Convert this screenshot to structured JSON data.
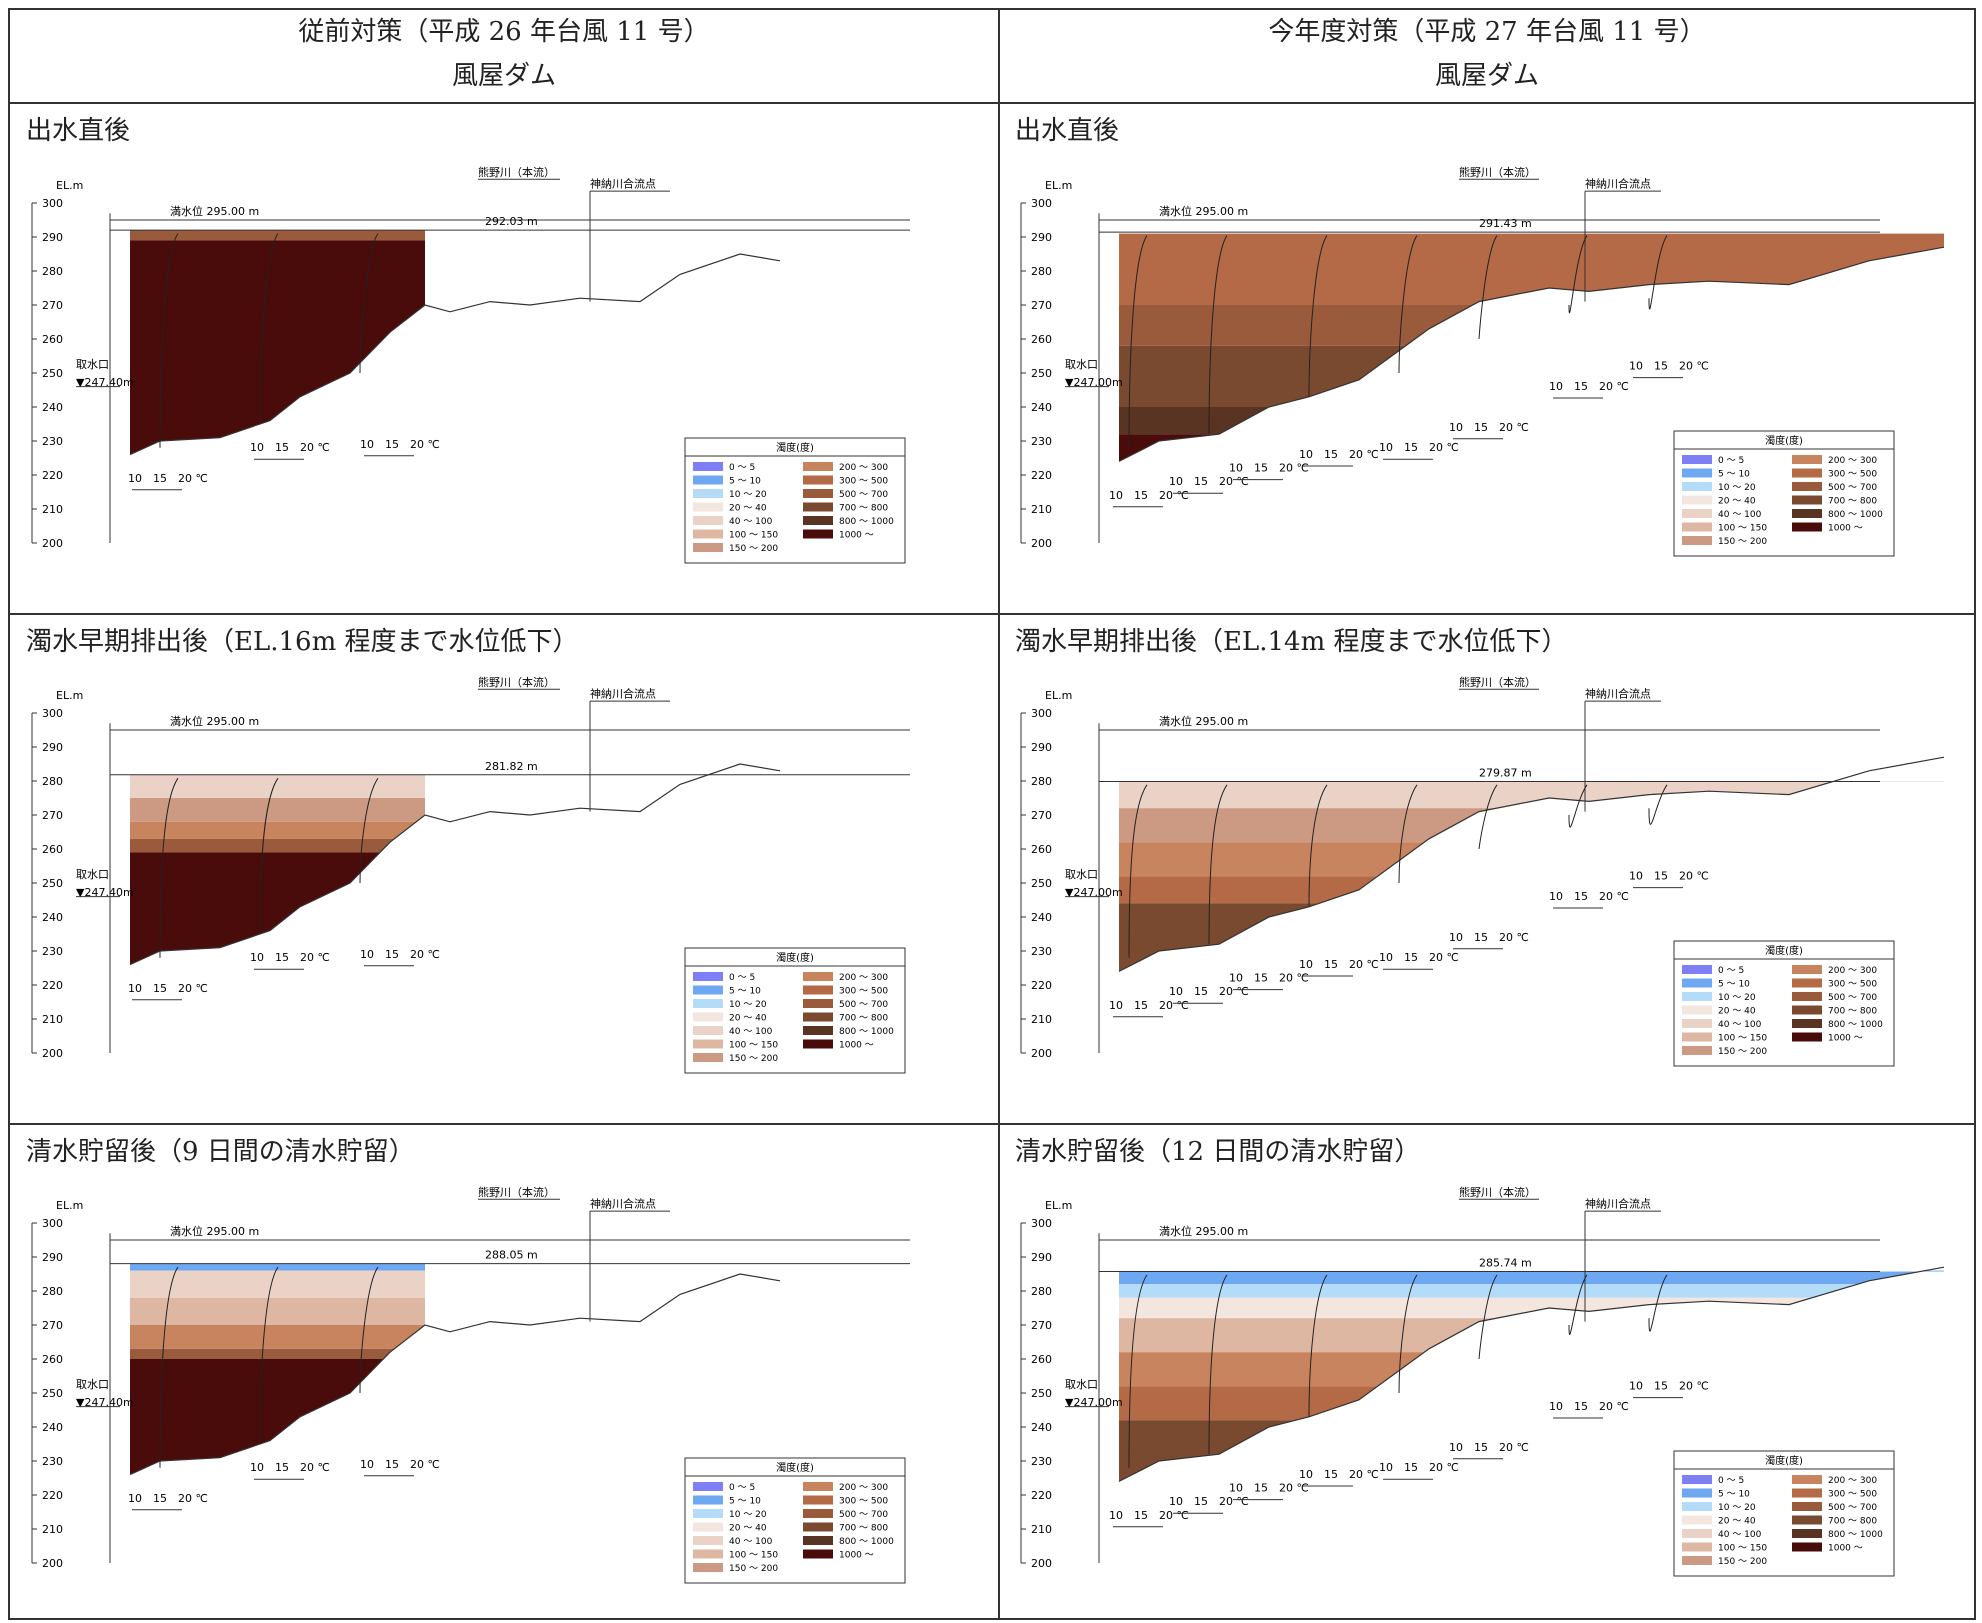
{
  "columns": [
    {
      "title": "従前対策（平成 26 年台風 11 号）",
      "subtitle": "風屋ダム"
    },
    {
      "title": "今年度対策（平成 27 年台風 11 号）",
      "subtitle": "風屋ダム"
    }
  ],
  "rows": [
    {
      "left_title": "出水直後",
      "right_title": "出水直後",
      "left_wl": "292.03 m",
      "right_wl": "291.43 m"
    },
    {
      "left_title": "濁水早期排出後（EL.16m 程度まで水位低下）",
      "right_title": "濁水早期排出後（EL.14m 程度まで水位低下）",
      "left_wl": "281.82 m",
      "right_wl": "279.87 m"
    },
    {
      "left_title": "清水貯留後（9 日間の清水貯留）",
      "right_title": "清水貯留後（12 日間の清水貯留）",
      "left_wl": "288.05 m",
      "right_wl": "285.74 m"
    }
  ],
  "chart_common": {
    "axis_unit": "EL.m",
    "y_ticks": [
      "300",
      "290",
      "280",
      "270",
      "260",
      "250",
      "240",
      "230",
      "220",
      "210",
      "200"
    ],
    "full_level": "満水位 295.00 m",
    "river": "熊野川（本流）",
    "confluence": "神納川合流点",
    "intake": "取水口",
    "intake_level": "▼247.40m",
    "intake_level_right": "▼247.00m",
    "temp_label": "10　15　20 ℃",
    "legend_title": "濁度(度)"
  },
  "legend": [
    {
      "label": "0 ～ 5",
      "color": "#7f7ff5"
    },
    {
      "label": "5 ～ 10",
      "color": "#6fa8f2"
    },
    {
      "label": "10 ～ 20",
      "color": "#b4dcf8"
    },
    {
      "label": "20 ～ 40",
      "color": "#f3e6de"
    },
    {
      "label": "40 ～ 100",
      "color": "#ead2c6"
    },
    {
      "label": "100 ～ 150",
      "color": "#deb7a3"
    },
    {
      "label": "150 ～ 200",
      "color": "#cc9a82"
    },
    {
      "label": "200 ～ 300",
      "color": "#c8845e"
    },
    {
      "label": "300 ～ 500",
      "color": "#b46a46"
    },
    {
      "label": "500 ～ 700",
      "color": "#9a5a3c"
    },
    {
      "label": "700 ～ 800",
      "color": "#7a4a30"
    },
    {
      "label": "800 ～ 1000",
      "color": "#5a3422"
    },
    {
      "label": "1000 ～",
      "color": "#4a0b0b"
    }
  ]
}
